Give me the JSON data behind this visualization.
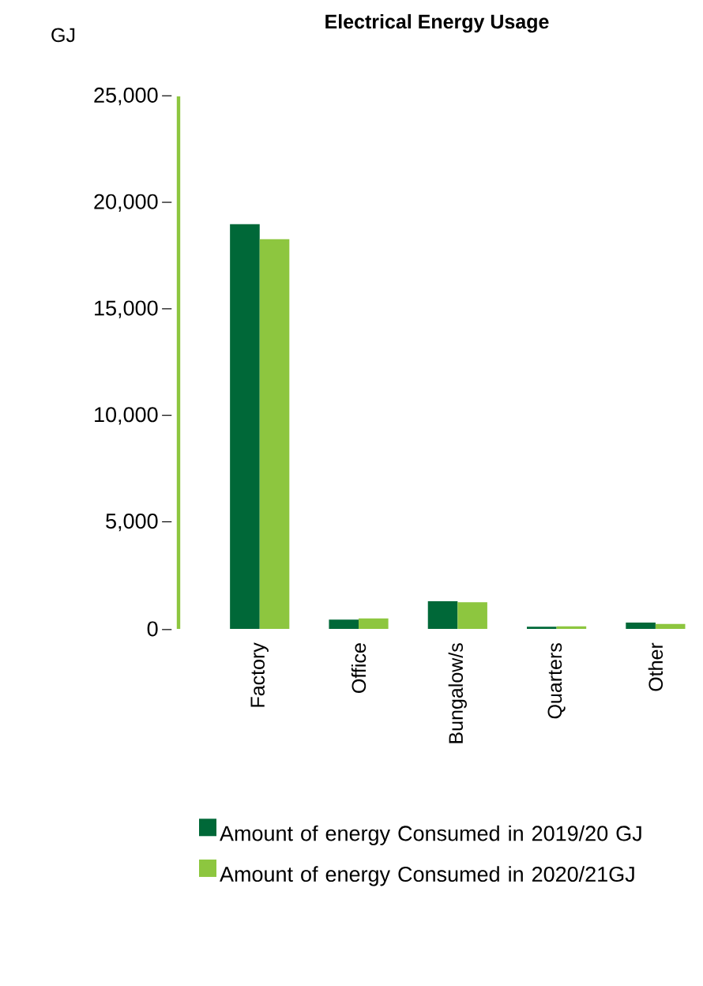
{
  "chart_data": {
    "type": "bar",
    "title": "Electrical Energy Usage",
    "ylabel": "GJ",
    "categories": [
      "Factory",
      "Office",
      "Bungalow/s",
      "Quarters",
      "Other"
    ],
    "series": [
      {
        "name": "Amount of energy Consumed in 2019/20 GJ",
        "color": "#006838",
        "values": [
          19000,
          440,
          1300,
          100,
          300
        ]
      },
      {
        "name": "Amount of energy Consumed in 2020/21GJ",
        "color": "#8dc63f",
        "values": [
          18300,
          490,
          1250,
          120,
          230
        ]
      }
    ],
    "ylim": [
      0,
      25000
    ],
    "yticks": [
      {
        "value": 0,
        "label": "0"
      },
      {
        "value": 5000,
        "label": "5,000"
      },
      {
        "value": 10000,
        "label": "10,000"
      },
      {
        "value": 15000,
        "label": "15,000"
      },
      {
        "value": 20000,
        "label": "20,000"
      },
      {
        "value": 25000,
        "label": "25,000"
      }
    ],
    "legend": "bottom"
  }
}
